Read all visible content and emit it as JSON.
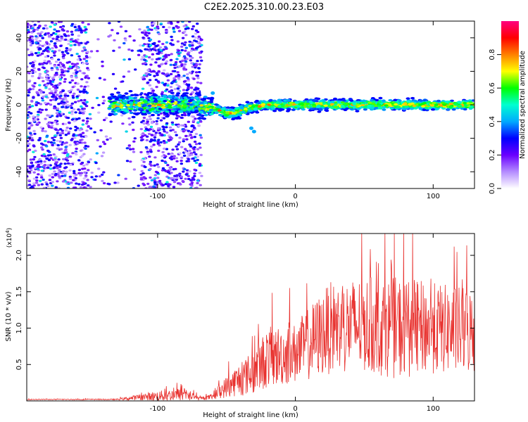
{
  "title": "C2E2.2025.310.00.23.E03",
  "chart_data": [
    {
      "type": "heatmap",
      "xlabel": "Height of straight line (km)",
      "ylabel": "Frequency (Hz)",
      "xlim": [
        -195,
        130
      ],
      "ylim": [
        -50,
        50
      ],
      "xticks": [
        -100,
        0,
        100
      ],
      "yticks": [
        -40,
        -20,
        0,
        20,
        40
      ],
      "colorbar": {
        "label": "Normalized spectral amplitude",
        "range": [
          0.0,
          1.0
        ],
        "ticks": [
          0.0,
          0.2,
          0.4,
          0.6,
          0.8
        ],
        "tick_labels": [
          "0.0",
          "0.2",
          "0.4",
          "0.6",
          "0.8"
        ],
        "colormap": "rainbow",
        "stops": [
          "#ffffff",
          "#b48cff",
          "#6a00ff",
          "#0000ff",
          "#00aaff",
          "#00ffd0",
          "#00ff00",
          "#ffff00",
          "#ff8000",
          "#ff0000",
          "#ff0080"
        ]
      },
      "features": [
        {
          "description": "broadband noise region",
          "x_range": [
            -195,
            -68
          ],
          "freq_range": [
            -50,
            50
          ],
          "amplitude": 0.15
        },
        {
          "description": "signal band near 0 Hz",
          "x_range": [
            -135,
            130
          ],
          "center_freq": 0,
          "amplitude_range": [
            0.3,
            0.85
          ]
        },
        {
          "description": "signal dips to about -15 Hz",
          "x": -32,
          "freq": -14
        }
      ]
    },
    {
      "type": "line",
      "xlabel": "Height of straight line (km)",
      "ylabel": "SNR (10 * v/v)",
      "y_scale_label": "(x10",
      "y_scale_exp": "4",
      "y_scale_close": ")",
      "xlim": [
        -195,
        130
      ],
      "ylim": [
        0,
        23000
      ],
      "xticks": [
        -100,
        0,
        100
      ],
      "yticks": [
        5000,
        10000,
        15000,
        20000
      ],
      "ytick_labels": [
        "0.5",
        "1.0",
        "1.5",
        "2.0"
      ],
      "color": "#e8312e",
      "series_profile": [
        {
          "x": -195,
          "mean": 200,
          "amp": 80
        },
        {
          "x": -130,
          "mean": 200,
          "amp": 100
        },
        {
          "x": -105,
          "mean": 600,
          "amp": 900
        },
        {
          "x": -80,
          "mean": 900,
          "amp": 1400
        },
        {
          "x": -70,
          "mean": 300,
          "amp": 300
        },
        {
          "x": -62,
          "mean": 500,
          "amp": 500
        },
        {
          "x": -45,
          "mean": 2500,
          "amp": 2800
        },
        {
          "x": -30,
          "mean": 4000,
          "amp": 4500
        },
        {
          "x": -20,
          "mean": 6000,
          "amp": 6000
        },
        {
          "x": 0,
          "mean": 6500,
          "amp": 6000
        },
        {
          "x": 25,
          "mean": 10000,
          "amp": 9000
        },
        {
          "x": 50,
          "mean": 10500,
          "amp": 9500
        },
        {
          "x": 75,
          "mean": 10000,
          "amp": 10000
        },
        {
          "x": 100,
          "mean": 10000,
          "amp": 9000
        },
        {
          "x": 130,
          "mean": 9500,
          "amp": 8500
        }
      ]
    }
  ]
}
